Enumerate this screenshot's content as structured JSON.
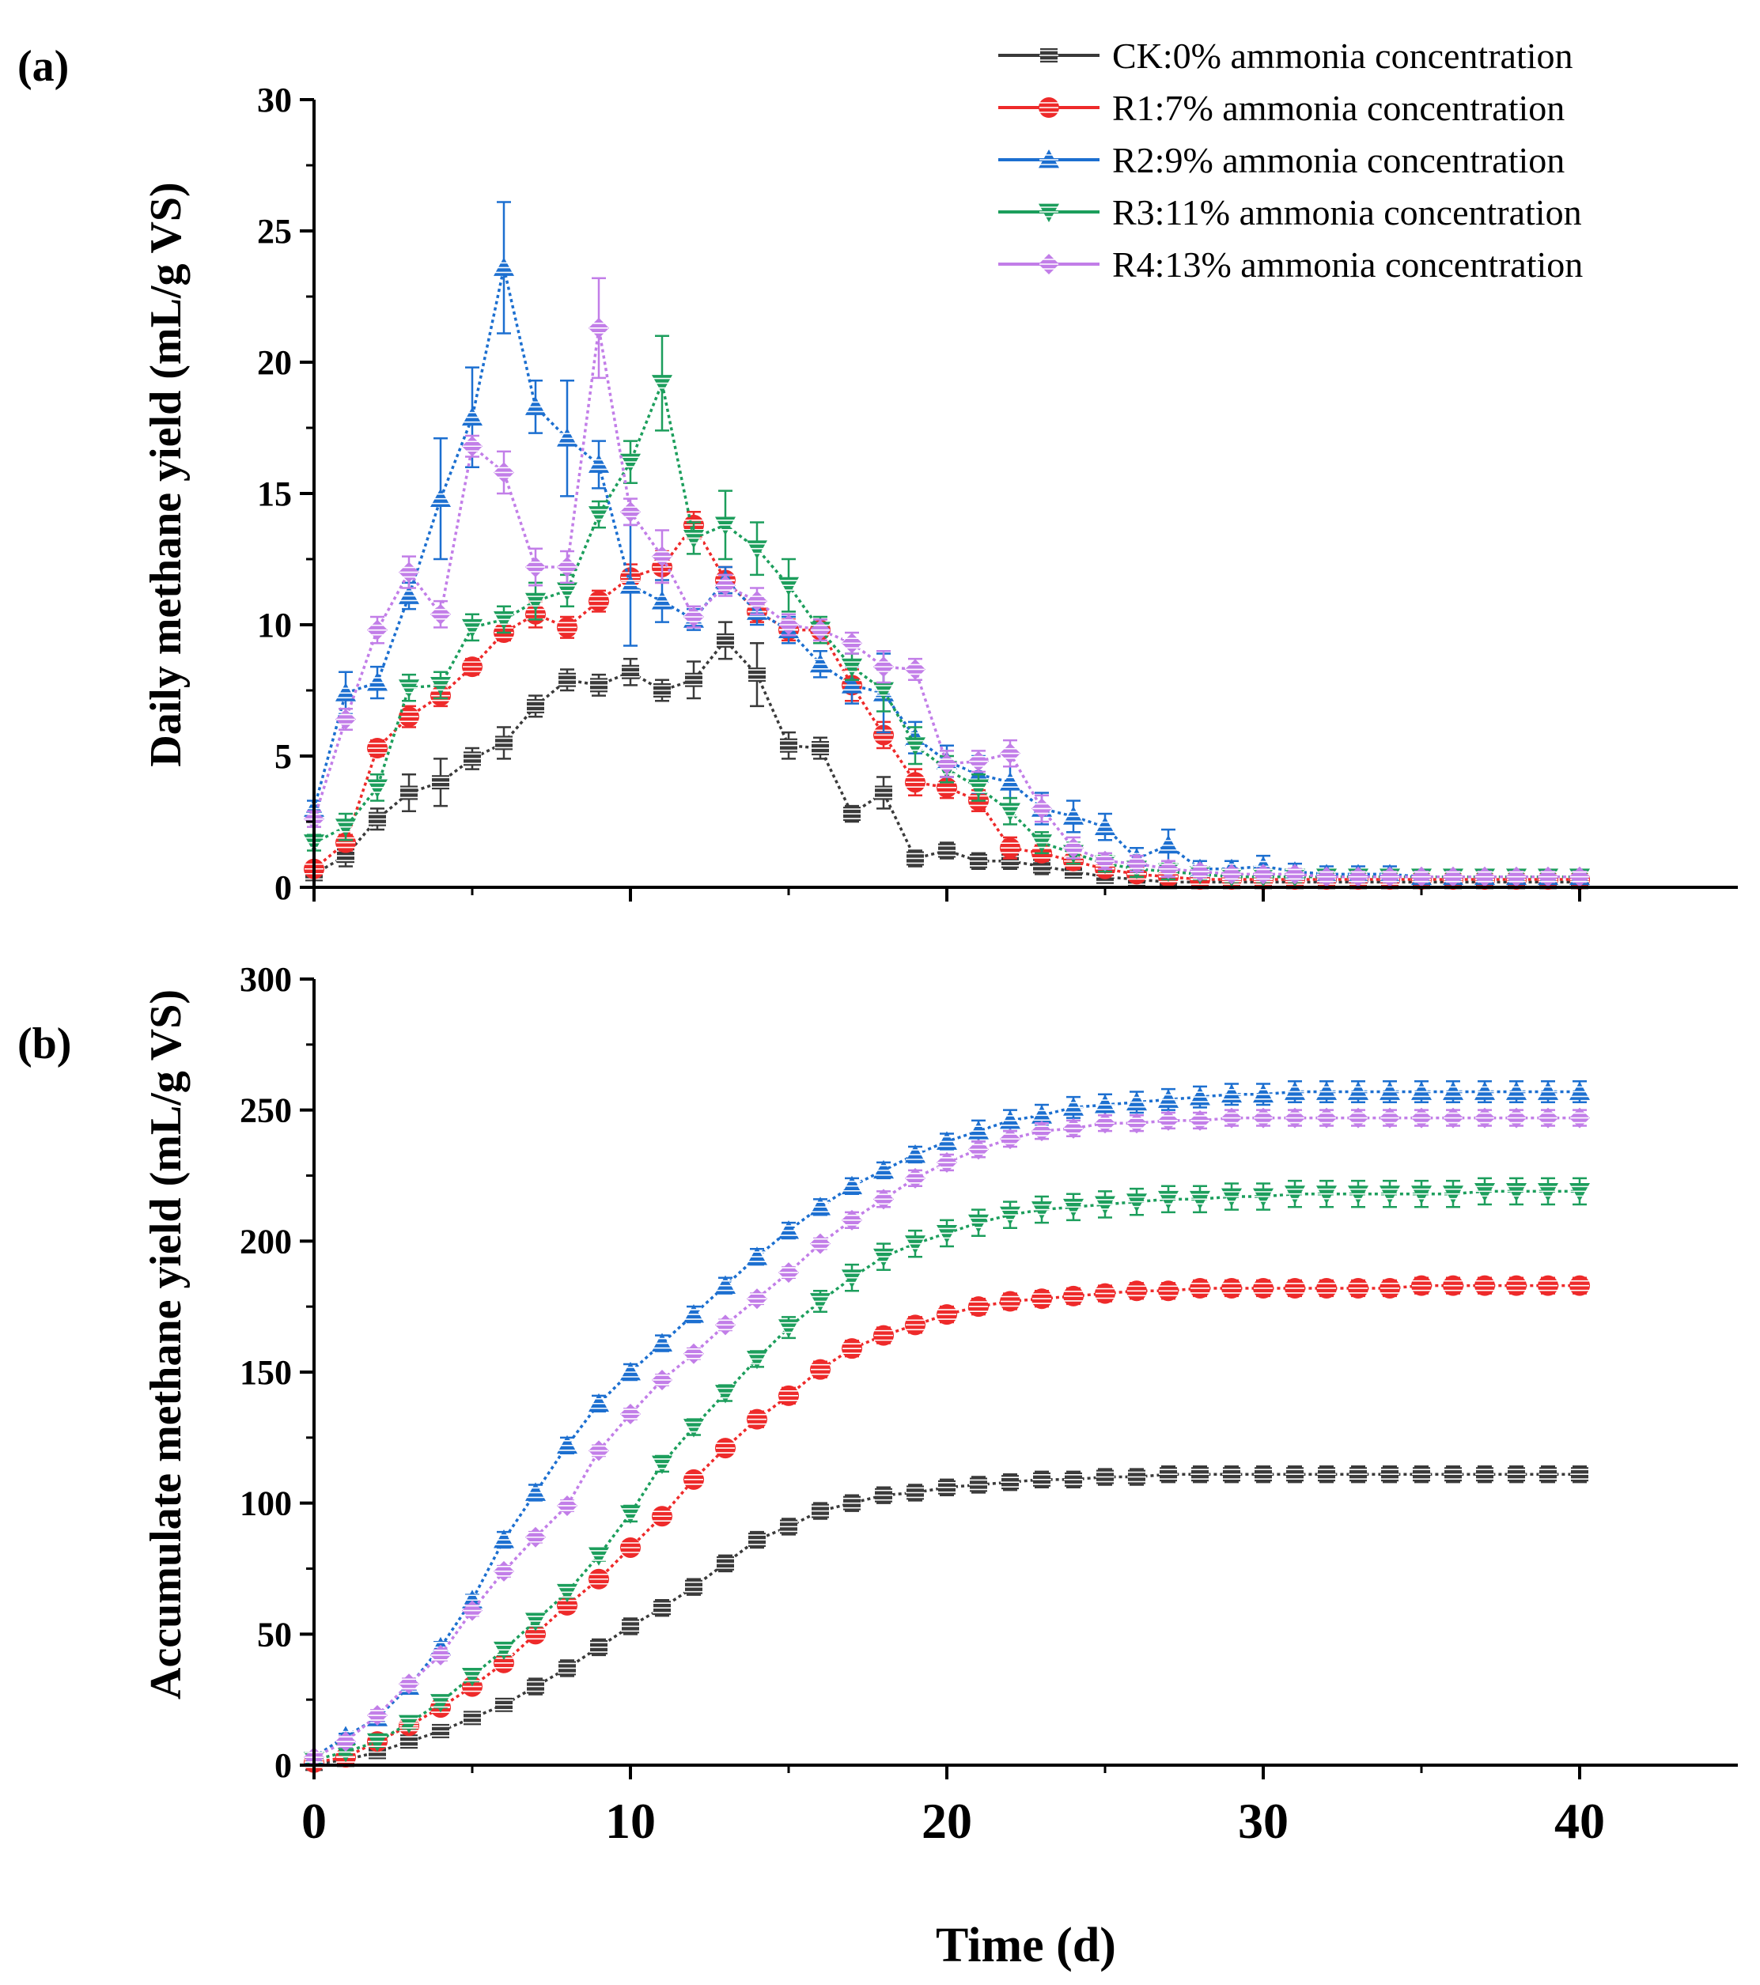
{
  "figure": {
    "panel_a_label": "(a)",
    "panel_b_label": "(b)",
    "x_axis_title": "Time (d)",
    "legend": [
      {
        "key": "CK",
        "label": "CK:0% ammonia concentration",
        "color": "#3a3a3a",
        "marker": "hline"
      },
      {
        "key": "R1",
        "label": "R1:7% ammonia concentration",
        "color": "#ee2a2a",
        "marker": "circle"
      },
      {
        "key": "R2",
        "label": "R2:9% ammonia concentration",
        "color": "#1c6fd0",
        "marker": "triangle-up"
      },
      {
        "key": "R3",
        "label": "R3:11% ammonia concentration",
        "color": "#1c9e5c",
        "marker": "triangle-down"
      },
      {
        "key": "R4",
        "label": "R4:13% ammonia concentration",
        "color": "#c27ee8",
        "marker": "diamond"
      }
    ]
  },
  "chart_data": [
    {
      "type": "line",
      "id": "a",
      "title": "(a)",
      "xlabel": "",
      "ylabel": "Daily methane yield (mL/g VS)",
      "xlim": [
        0,
        45
      ],
      "ylim": [
        0,
        30
      ],
      "xticks": [
        0,
        10,
        20,
        30,
        40
      ],
      "yticks": [
        0,
        5,
        10,
        15,
        20,
        25,
        30
      ],
      "ytick_labels": [
        "0",
        "5",
        "10",
        "15",
        "20",
        "25",
        "30"
      ],
      "x": [
        0,
        1,
        2,
        3,
        4,
        5,
        6,
        7,
        8,
        9,
        10,
        11,
        12,
        13,
        14,
        15,
        16,
        17,
        18,
        19,
        20,
        21,
        22,
        23,
        24,
        25,
        26,
        27,
        28,
        29,
        30,
        31,
        32,
        33,
        34,
        35,
        36,
        37,
        38,
        39,
        40
      ],
      "series": [
        {
          "name": "CK:0% ammonia concentration",
          "values": [
            0.5,
            1.2,
            2.6,
            3.6,
            4.0,
            4.9,
            5.5,
            6.9,
            7.9,
            7.7,
            8.2,
            7.5,
            7.9,
            9.4,
            8.1,
            5.4,
            5.3,
            2.8,
            3.6,
            1.1,
            1.4,
            1.0,
            1.0,
            0.8,
            0.6,
            0.4,
            0.3,
            0.2,
            0.2,
            0.2,
            0.2,
            0.2,
            0.2,
            0.2,
            0.2,
            0.2,
            0.2,
            0.2,
            0.2,
            0.2,
            0.2
          ],
          "errors": [
            0.2,
            0.4,
            0.4,
            0.7,
            0.9,
            0.4,
            0.6,
            0.4,
            0.4,
            0.4,
            0.5,
            0.4,
            0.7,
            0.7,
            1.2,
            0.5,
            0.4,
            0.3,
            0.6,
            0.3,
            0.3,
            0.3,
            0.3,
            0.3,
            0.2,
            0.2,
            0.2,
            0.1,
            0.1,
            0.1,
            0.1,
            0.1,
            0.1,
            0.1,
            0.1,
            0.1,
            0.1,
            0.1,
            0.1,
            0.1,
            0.1
          ]
        },
        {
          "name": "R1:7% ammonia concentration",
          "values": [
            0.7,
            1.7,
            5.3,
            6.5,
            7.3,
            8.4,
            9.7,
            10.4,
            9.9,
            10.9,
            11.8,
            12.2,
            13.8,
            11.7,
            10.5,
            9.8,
            9.8,
            7.7,
            5.8,
            4.0,
            3.8,
            3.3,
            1.5,
            1.3,
            1.0,
            0.7,
            0.5,
            0.4,
            0.3,
            0.3,
            0.3,
            0.3,
            0.3,
            0.3,
            0.3,
            0.3,
            0.3,
            0.3,
            0.3,
            0.3,
            0.3
          ],
          "errors": [
            0.2,
            0.3,
            0.3,
            0.4,
            0.4,
            0.3,
            0.3,
            0.5,
            0.4,
            0.4,
            0.5,
            0.6,
            0.5,
            0.5,
            0.4,
            0.4,
            0.4,
            0.6,
            0.5,
            0.5,
            0.4,
            0.4,
            0.4,
            0.3,
            0.3,
            0.2,
            0.2,
            0.2,
            0.1,
            0.1,
            0.1,
            0.1,
            0.1,
            0.1,
            0.1,
            0.1,
            0.1,
            0.1,
            0.1,
            0.1,
            0.1
          ]
        },
        {
          "name": "R2:9% ammonia concentration",
          "values": [
            3.0,
            7.4,
            7.8,
            11.1,
            14.8,
            17.9,
            23.6,
            18.3,
            17.1,
            16.1,
            11.5,
            10.9,
            10.2,
            11.7,
            10.5,
            9.8,
            8.5,
            7.7,
            7.4,
            5.7,
            4.8,
            4.3,
            4.0,
            3.0,
            2.7,
            2.3,
            1.1,
            1.6,
            0.7,
            0.7,
            0.8,
            0.6,
            0.5,
            0.5,
            0.5,
            0.4,
            0.4,
            0.4,
            0.4,
            0.4,
            0.4
          ],
          "errors": [
            0.3,
            0.8,
            0.6,
            0.5,
            2.3,
            1.9,
            2.5,
            1.0,
            2.2,
            0.9,
            2.3,
            0.8,
            0.4,
            0.5,
            0.5,
            0.5,
            0.5,
            0.7,
            1.5,
            0.6,
            0.6,
            0.7,
            0.6,
            0.6,
            0.6,
            0.5,
            0.4,
            0.6,
            0.3,
            0.3,
            0.4,
            0.3,
            0.3,
            0.3,
            0.3,
            0.2,
            0.2,
            0.2,
            0.2,
            0.2,
            0.2
          ]
        },
        {
          "name": "R3:11% ammonia concentration",
          "values": [
            1.7,
            2.3,
            3.8,
            7.6,
            7.7,
            9.9,
            10.2,
            10.9,
            11.3,
            14.2,
            16.2,
            19.2,
            13.3,
            13.8,
            12.9,
            11.5,
            9.8,
            8.4,
            7.5,
            5.4,
            4.5,
            3.8,
            2.9,
            1.7,
            1.3,
            0.9,
            0.7,
            0.6,
            0.5,
            0.4,
            0.4,
            0.4,
            0.4,
            0.4,
            0.4,
            0.4,
            0.4,
            0.4,
            0.4,
            0.4,
            0.4
          ],
          "errors": [
            0.3,
            0.5,
            0.5,
            0.5,
            0.5,
            0.5,
            0.5,
            0.7,
            0.6,
            0.5,
            0.8,
            1.8,
            0.6,
            1.3,
            1.0,
            1.0,
            0.5,
            0.5,
            0.8,
            0.7,
            0.5,
            0.5,
            0.5,
            0.4,
            0.4,
            0.3,
            0.3,
            0.3,
            0.2,
            0.2,
            0.2,
            0.2,
            0.2,
            0.2,
            0.2,
            0.2,
            0.2,
            0.2,
            0.2,
            0.2,
            0.2
          ]
        },
        {
          "name": "R4:13% ammonia concentration",
          "values": [
            2.6,
            6.4,
            9.8,
            12.0,
            10.4,
            16.8,
            15.8,
            12.2,
            12.2,
            21.3,
            14.3,
            12.6,
            10.3,
            11.5,
            10.9,
            10.0,
            9.8,
            9.3,
            8.4,
            8.3,
            4.7,
            4.8,
            5.1,
            3.0,
            1.5,
            1.0,
            0.9,
            0.7,
            0.6,
            0.5,
            0.5,
            0.5,
            0.4,
            0.4,
            0.4,
            0.4,
            0.4,
            0.4,
            0.4,
            0.4,
            0.4
          ],
          "errors": [
            0.3,
            0.4,
            0.5,
            0.6,
            0.5,
            0.4,
            0.8,
            0.7,
            0.6,
            1.9,
            0.5,
            1.0,
            0.4,
            0.4,
            0.5,
            0.4,
            0.4,
            0.4,
            0.6,
            0.4,
            0.5,
            0.4,
            0.5,
            0.5,
            0.4,
            0.3,
            0.3,
            0.3,
            0.2,
            0.2,
            0.2,
            0.2,
            0.2,
            0.2,
            0.2,
            0.2,
            0.2,
            0.2,
            0.2,
            0.2,
            0.2
          ]
        }
      ]
    },
    {
      "type": "line",
      "id": "b",
      "title": "(b)",
      "xlabel": "Time (d)",
      "ylabel": "Accumulate methane yield (mL/g VS)",
      "xlim": [
        0,
        45
      ],
      "ylim": [
        0,
        300
      ],
      "xticks": [
        0,
        10,
        20,
        30,
        40
      ],
      "xtick_labels": [
        "0",
        "10",
        "20",
        "30",
        "40"
      ],
      "yticks": [
        0,
        50,
        100,
        150,
        200,
        250,
        300
      ],
      "ytick_labels": [
        "0",
        "50",
        "100",
        "150",
        "200",
        "250",
        "300"
      ],
      "x": [
        0,
        1,
        2,
        3,
        4,
        5,
        6,
        7,
        8,
        9,
        10,
        11,
        12,
        13,
        14,
        15,
        16,
        17,
        18,
        19,
        20,
        21,
        22,
        23,
        24,
        25,
        26,
        27,
        28,
        29,
        30,
        31,
        32,
        33,
        34,
        35,
        36,
        37,
        38,
        39,
        40
      ],
      "series": [
        {
          "name": "CK:0% ammonia concentration",
          "values": [
            0.5,
            2,
            5,
            9,
            13,
            18,
            23,
            30,
            37,
            45,
            53,
            60,
            68,
            77,
            86,
            91,
            97,
            100,
            103,
            104,
            106,
            107,
            108,
            109,
            109,
            110,
            110,
            111,
            111,
            111,
            111,
            111,
            111,
            111,
            111,
            111,
            111,
            111,
            111,
            111,
            111
          ],
          "errors": [
            1,
            1,
            2,
            2,
            2,
            2,
            2,
            3,
            3,
            3,
            3,
            3,
            3,
            3,
            3,
            3,
            3,
            3,
            3,
            3,
            3,
            3,
            3,
            3,
            3,
            3,
            3,
            3,
            3,
            3,
            3,
            3,
            3,
            3,
            3,
            3,
            3,
            3,
            3,
            3,
            3
          ]
        },
        {
          "name": "R1:7% ammonia concentration",
          "values": [
            1,
            3,
            9,
            15,
            22,
            30,
            39,
            50,
            61,
            71,
            83,
            95,
            109,
            121,
            132,
            141,
            151,
            159,
            164,
            168,
            172,
            175,
            177,
            178,
            179,
            180,
            181,
            181,
            182,
            182,
            182,
            182,
            182,
            182,
            182,
            183,
            183,
            183,
            183,
            183,
            183
          ],
          "errors": [
            1,
            1,
            2,
            2,
            2,
            2,
            2,
            2,
            2,
            2,
            2,
            2,
            2,
            2,
            3,
            3,
            3,
            3,
            3,
            3,
            3,
            3,
            3,
            3,
            3,
            3,
            3,
            3,
            3,
            3,
            3,
            3,
            3,
            3,
            3,
            3,
            3,
            3,
            3,
            3,
            3
          ]
        },
        {
          "name": "R2:9% ammonia concentration",
          "values": [
            3,
            11,
            18,
            30,
            45,
            63,
            86,
            104,
            122,
            138,
            150,
            161,
            172,
            183,
            194,
            204,
            213,
            221,
            227,
            233,
            238,
            242,
            246,
            248,
            251,
            252,
            253,
            254,
            255,
            256,
            256,
            257,
            257,
            257,
            257,
            257,
            257,
            257,
            257,
            257,
            257
          ],
          "errors": [
            1,
            1,
            2,
            2,
            2,
            2,
            3,
            3,
            3,
            3,
            3,
            3,
            3,
            3,
            3,
            3,
            3,
            3,
            3,
            3,
            3,
            4,
            4,
            4,
            4,
            4,
            4,
            4,
            4,
            4,
            4,
            4,
            4,
            4,
            4,
            4,
            4,
            4,
            4,
            4,
            4
          ]
        },
        {
          "name": "R3:11% ammonia concentration",
          "values": [
            2,
            5,
            9,
            16,
            24,
            34,
            44,
            55,
            66,
            80,
            96,
            115,
            129,
            142,
            155,
            167,
            177,
            186,
            194,
            199,
            203,
            207,
            210,
            212,
            213,
            214,
            215,
            216,
            216,
            217,
            217,
            218,
            218,
            218,
            218,
            218,
            218,
            219,
            219,
            219,
            219
          ],
          "errors": [
            1,
            1,
            2,
            2,
            2,
            2,
            2,
            2,
            2,
            2,
            3,
            3,
            3,
            3,
            3,
            4,
            4,
            5,
            5,
            5,
            5,
            5,
            5,
            5,
            5,
            5,
            5,
            5,
            5,
            5,
            5,
            5,
            5,
            5,
            5,
            5,
            5,
            5,
            5,
            5,
            5
          ]
        },
        {
          "name": "R4:13% ammonia concentration",
          "values": [
            3,
            9,
            19,
            31,
            42,
            59,
            74,
            87,
            99,
            120,
            134,
            147,
            157,
            168,
            178,
            188,
            199,
            208,
            216,
            224,
            230,
            235,
            239,
            242,
            243,
            245,
            245,
            246,
            246,
            247,
            247,
            247,
            247,
            247,
            247,
            247,
            247,
            247,
            247,
            247,
            247
          ],
          "errors": [
            1,
            2,
            2,
            2,
            2,
            2,
            2,
            2,
            2,
            2,
            2,
            2,
            2,
            2,
            2,
            2,
            2,
            3,
            3,
            3,
            3,
            3,
            3,
            3,
            3,
            3,
            3,
            3,
            3,
            3,
            3,
            3,
            3,
            3,
            3,
            3,
            3,
            3,
            3,
            3,
            3
          ]
        }
      ]
    }
  ]
}
